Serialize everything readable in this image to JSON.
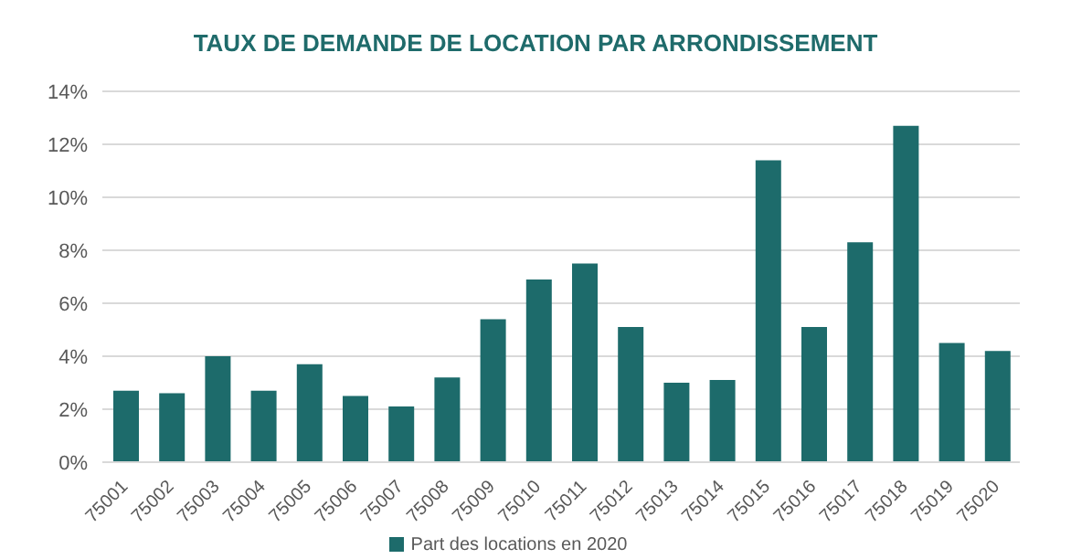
{
  "chart_data": {
    "type": "bar",
    "title": "TAUX DE DEMANDE DE LOCATION PAR ARRONDISSEMENT",
    "categories": [
      "75001",
      "75002",
      "75003",
      "75004",
      "75005",
      "75006",
      "75007",
      "75008",
      "75009",
      "75010",
      "75011",
      "75012",
      "75013",
      "75014",
      "75015",
      "75016",
      "75017",
      "75018",
      "75019",
      "75020"
    ],
    "series": [
      {
        "name": "Part des locations en 2020",
        "color": "#1d6b6b",
        "values": [
          2.7,
          2.6,
          4.0,
          2.7,
          3.7,
          2.5,
          2.1,
          3.2,
          5.4,
          6.9,
          7.5,
          5.1,
          3.0,
          3.1,
          11.4,
          5.1,
          8.3,
          12.7,
          4.5,
          4.2
        ]
      }
    ],
    "ylim": [
      0,
      14
    ],
    "yticks": [
      {
        "value": 0,
        "label": "0%"
      },
      {
        "value": 2,
        "label": "2%"
      },
      {
        "value": 4,
        "label": "4%"
      },
      {
        "value": 6,
        "label": "6%"
      },
      {
        "value": 8,
        "label": "8%"
      },
      {
        "value": 10,
        "label": "10%"
      },
      {
        "value": 12,
        "label": "12%"
      },
      {
        "value": 14,
        "label": "14%"
      }
    ],
    "grid": "y",
    "legend": "bottom"
  }
}
